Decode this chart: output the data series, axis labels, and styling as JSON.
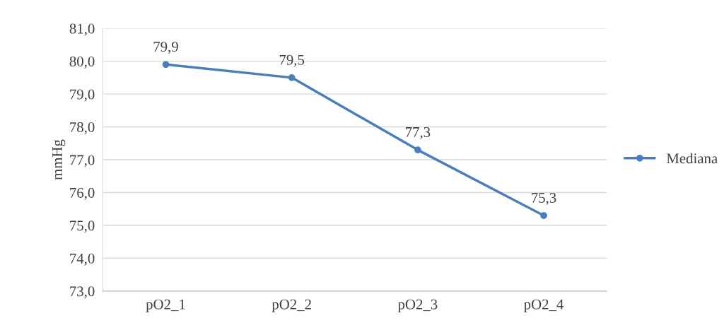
{
  "chart_data": {
    "type": "line",
    "ylabel": "mmHg",
    "categories": [
      "pO2_1",
      "pO2_2",
      "pO2_3",
      "pO2_4"
    ],
    "series": [
      {
        "name": "Mediana",
        "color": "#4a7ebb",
        "values": [
          79.9,
          79.5,
          77.3,
          75.3
        ],
        "value_labels": [
          "79,9",
          "79,5",
          "77,3",
          "75,3"
        ]
      }
    ],
    "ylim": [
      73,
      81
    ],
    "yticks": [
      {
        "value": 73,
        "label": "73,0"
      },
      {
        "value": 74,
        "label": "74,0"
      },
      {
        "value": 75,
        "label": "75,0"
      },
      {
        "value": 76,
        "label": "76,0"
      },
      {
        "value": 77,
        "label": "77,0"
      },
      {
        "value": 78,
        "label": "78,0"
      },
      {
        "value": 79,
        "label": "79,0"
      },
      {
        "value": 80,
        "label": "80,0"
      },
      {
        "value": 81,
        "label": "81,0"
      }
    ],
    "grid": "y",
    "legend": "right",
    "marker": "circle",
    "line_style": "solid"
  }
}
